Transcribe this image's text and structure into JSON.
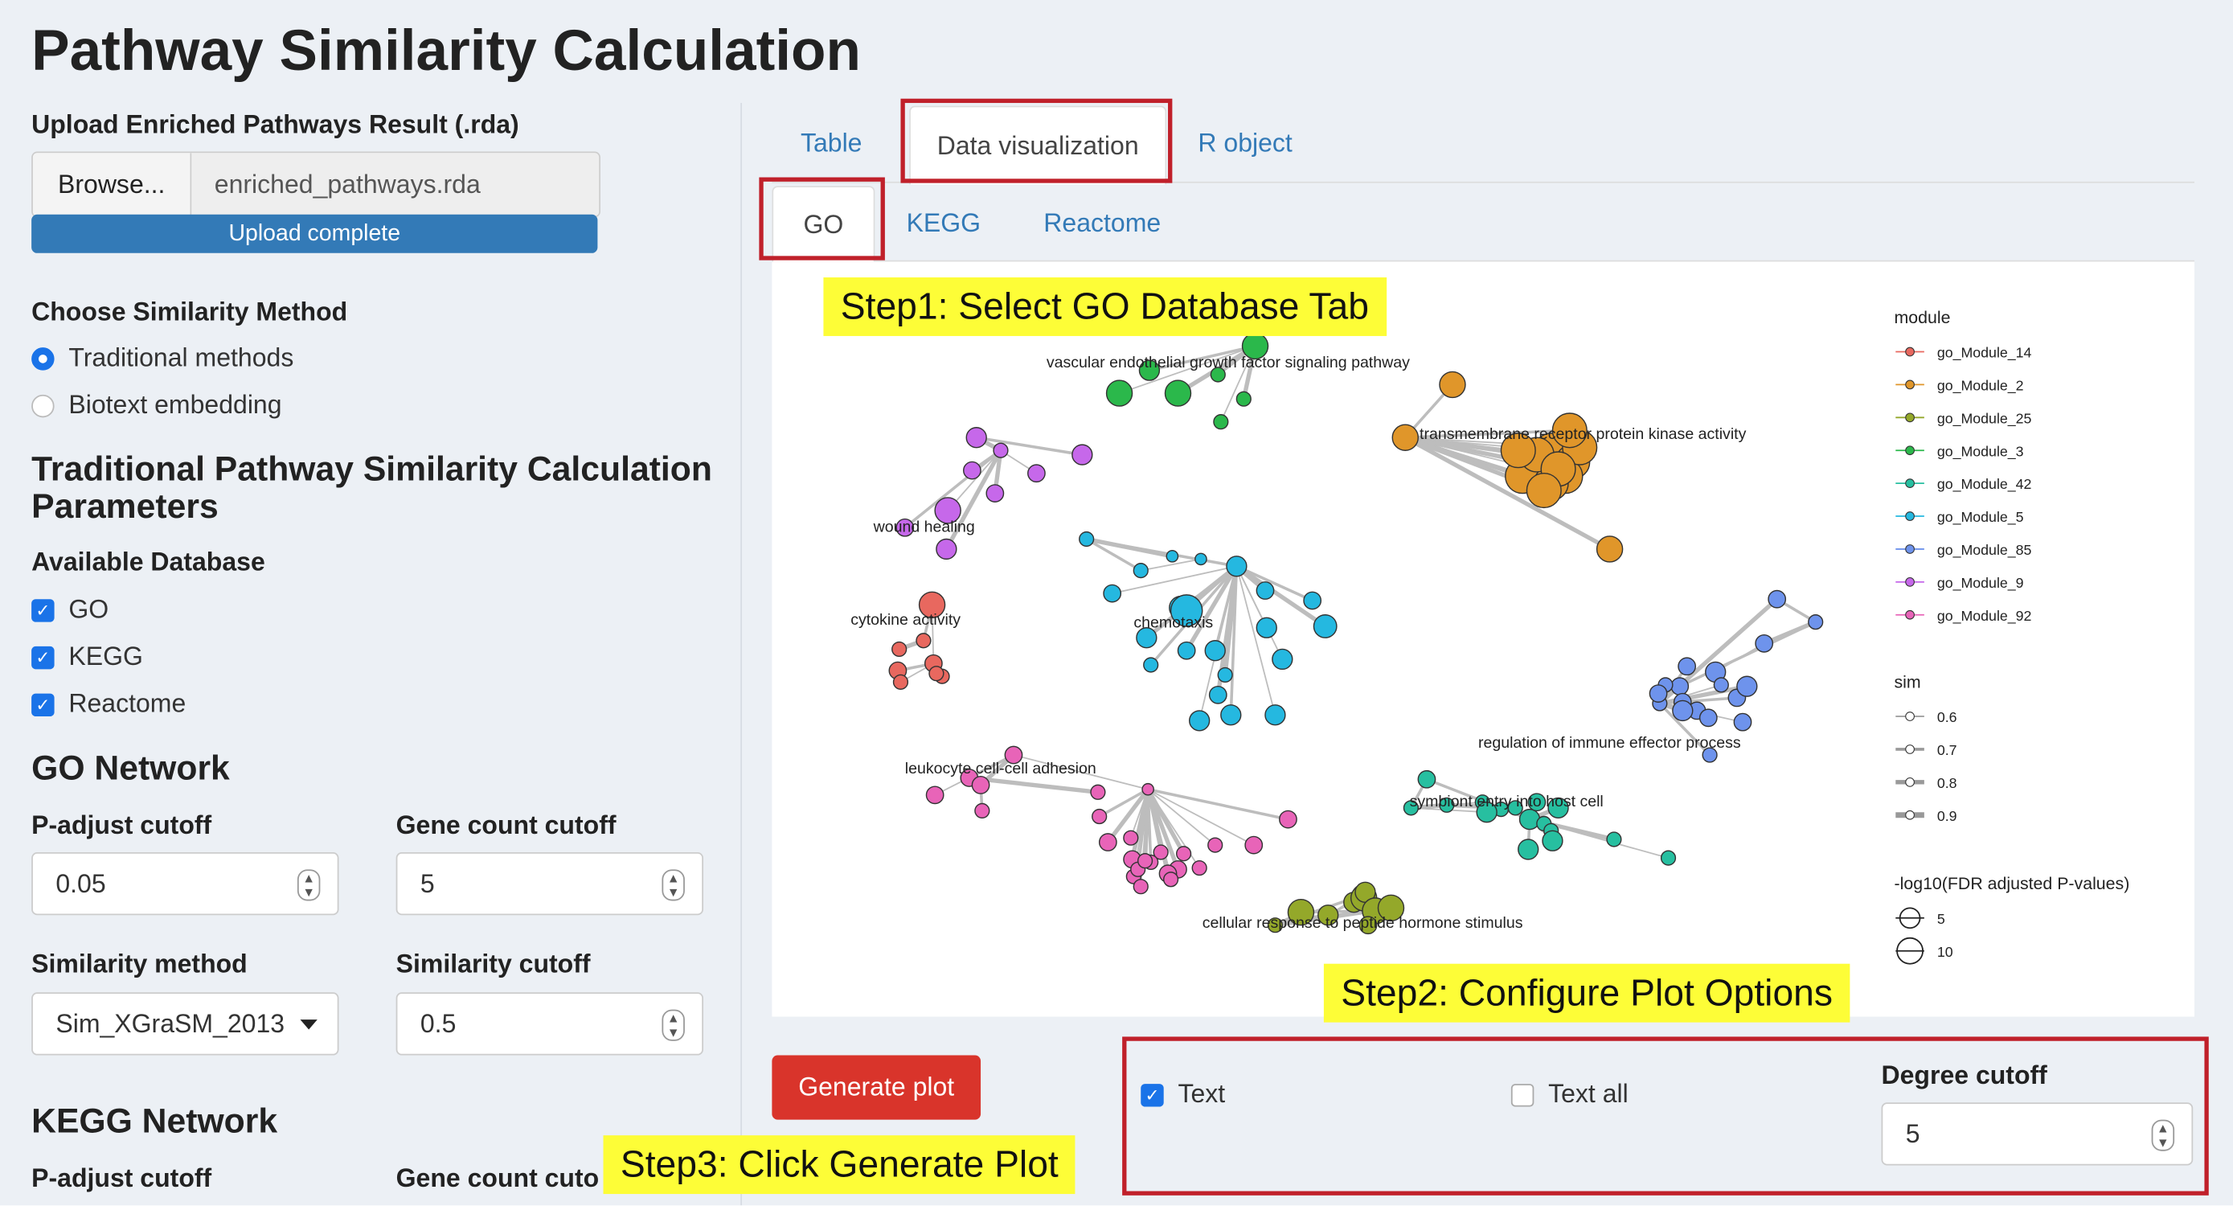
{
  "app_title": "Pathway Similarity Calculation",
  "upload": {
    "label": "Upload Enriched Pathways Result (.rda)",
    "browse_label": "Browse...",
    "filename": "enriched_pathways.rda",
    "progress_text": "Upload complete",
    "progress_value": 1.0
  },
  "similarity_method": {
    "label": "Choose Similarity Method",
    "options": [
      "Traditional methods",
      "Biotext embedding"
    ],
    "selected": "Traditional methods"
  },
  "params_heading": "Traditional Pathway Similarity Calculation Parameters",
  "database": {
    "label": "Available Database",
    "options": [
      {
        "label": "GO",
        "checked": true
      },
      {
        "label": "KEGG",
        "checked": true
      },
      {
        "label": "Reactome",
        "checked": true
      }
    ]
  },
  "go_network": {
    "heading": "GO Network",
    "padj_label": "P-adjust cutoff",
    "padj_value": "0.05",
    "gene_count_label": "Gene count cutoff",
    "gene_count_value": "5",
    "sim_method_label": "Similarity method",
    "sim_method_value": "Sim_XGraSM_2013",
    "sim_cutoff_label": "Similarity cutoff",
    "sim_cutoff_value": "0.5"
  },
  "kegg_network": {
    "heading": "KEGG Network",
    "padj_label": "P-adjust cutoff",
    "gene_count_label": "Gene count cuto"
  },
  "main_tabs": [
    "Table",
    "Data visualization",
    "R object"
  ],
  "main_tab_active": "Data visualization",
  "sub_tabs": [
    "GO",
    "KEGG",
    "Reactome"
  ],
  "sub_tab_active": "GO",
  "plot": {
    "node_labels": [
      "vascular endothelial growth factor signaling pathway",
      "transmembrane receptor protein kinase activity",
      "wound healing",
      "cytokine activity",
      "chemotaxis",
      "regulation of immune effector process",
      "leukocyte cell-cell adhesion",
      "symbiont entry into host cell",
      "cellular response to peptide hormone stimulus"
    ],
    "legend_module_title": "module",
    "modules": [
      {
        "name": "go_Module_14",
        "color": "#e8685f"
      },
      {
        "name": "go_Module_2",
        "color": "#e0962a"
      },
      {
        "name": "go_Module_25",
        "color": "#94a82a"
      },
      {
        "name": "go_Module_3",
        "color": "#2bb84b"
      },
      {
        "name": "go_Module_42",
        "color": "#27bfa0"
      },
      {
        "name": "go_Module_5",
        "color": "#25b8e0"
      },
      {
        "name": "go_Module_85",
        "color": "#6e93ec"
      },
      {
        "name": "go_Module_9",
        "color": "#c668ea"
      },
      {
        "name": "go_Module_92",
        "color": "#e864b8"
      }
    ],
    "legend_sim_title": "sim",
    "sim_values": [
      "0.6",
      "0.7",
      "0.8",
      "0.9"
    ],
    "legend_size_title": "-log10(FDR adjusted P-values)",
    "size_values": [
      "5",
      "10"
    ]
  },
  "generate_button": "Generate plot",
  "plot_options": {
    "text_label": "Text",
    "text_checked": true,
    "text_all_label": "Text all",
    "text_all_checked": false,
    "degree_label": "Degree cutoff",
    "degree_value": "5"
  },
  "annotations": {
    "step1": "Step1: Select GO Database Tab",
    "step2": "Step2: Configure Plot Options",
    "step3": "Step3: Click Generate Plot",
    "highlight_color": "#c0202a",
    "note_bg": "#fdfd37"
  }
}
